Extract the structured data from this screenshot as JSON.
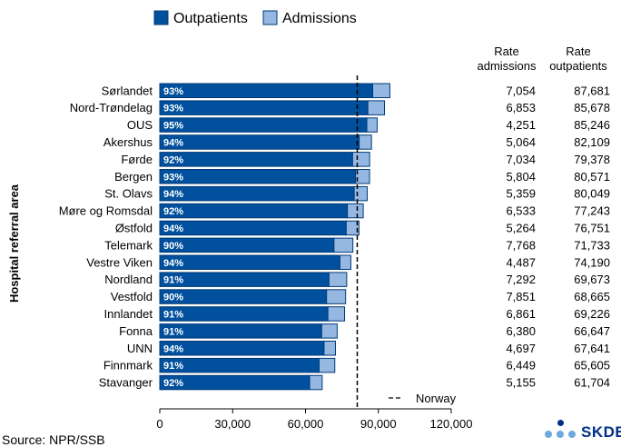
{
  "chart_data": {
    "type": "bar",
    "orientation": "horizontal",
    "stacked": true,
    "legend": {
      "position": "top",
      "items": [
        {
          "label": "Outpatients",
          "color": "#00509e"
        },
        {
          "label": "Admissions",
          "color": "#95b8e3"
        }
      ]
    },
    "ylabel": "Hospital referral area",
    "xlim": [
      0,
      120000
    ],
    "xticks": [
      "0",
      "30,000",
      "60,000",
      "90,000",
      "120,000"
    ],
    "xtick_values": [
      0,
      30000,
      60000,
      90000,
      120000
    ],
    "reference_line": {
      "label": "Norway",
      "value": 81300
    },
    "table_headers": [
      {
        "line1": "Rate",
        "line2": "admissions"
      },
      {
        "line1": "Rate",
        "line2": "outpatients"
      }
    ],
    "categories": [
      "Sørlandet",
      "Nord-Trøndelag",
      "OUS",
      "Akershus",
      "Førde",
      "Bergen",
      "St. Olavs",
      "Møre og Romsdal",
      "Østfold",
      "Telemark",
      "Vestre Viken",
      "Nordland",
      "Vestfold",
      "Innlandet",
      "Fonna",
      "UNN",
      "Finnmark",
      "Stavanger"
    ],
    "outpatient_share": [
      "93%",
      "93%",
      "95%",
      "94%",
      "92%",
      "93%",
      "94%",
      "92%",
      "94%",
      "90%",
      "94%",
      "91%",
      "90%",
      "91%",
      "91%",
      "94%",
      "91%",
      "92%"
    ],
    "rate_admissions": [
      "7,054",
      "6,853",
      "4,251",
      "5,064",
      "7,034",
      "5,804",
      "5,359",
      "6,533",
      "5,264",
      "7,768",
      "4,487",
      "7,292",
      "7,851",
      "6,861",
      "6,380",
      "4,697",
      "6,449",
      "5,155"
    ],
    "rate_outpatients": [
      "87,681",
      "85,678",
      "85,246",
      "82,109",
      "79,378",
      "80,571",
      "80,049",
      "77,243",
      "76,751",
      "71,733",
      "74,190",
      "69,673",
      "68,665",
      "69,226",
      "66,647",
      "67,641",
      "65,605",
      "61,704"
    ],
    "series": [
      {
        "name": "Outpatients",
        "values": [
          87681,
          85678,
          85246,
          82109,
          79378,
          80571,
          80049,
          77243,
          76751,
          71733,
          74190,
          69673,
          68665,
          69226,
          66647,
          67641,
          65605,
          61704
        ]
      },
      {
        "name": "Admissions",
        "values": [
          7054,
          6853,
          4251,
          5064,
          7034,
          5804,
          5359,
          6533,
          5264,
          7768,
          4487,
          7292,
          7851,
          6861,
          6380,
          4697,
          6449,
          5155
        ]
      }
    ]
  },
  "source": "Source: NPR/SSB",
  "logo": {
    "text": "SKDE"
  }
}
